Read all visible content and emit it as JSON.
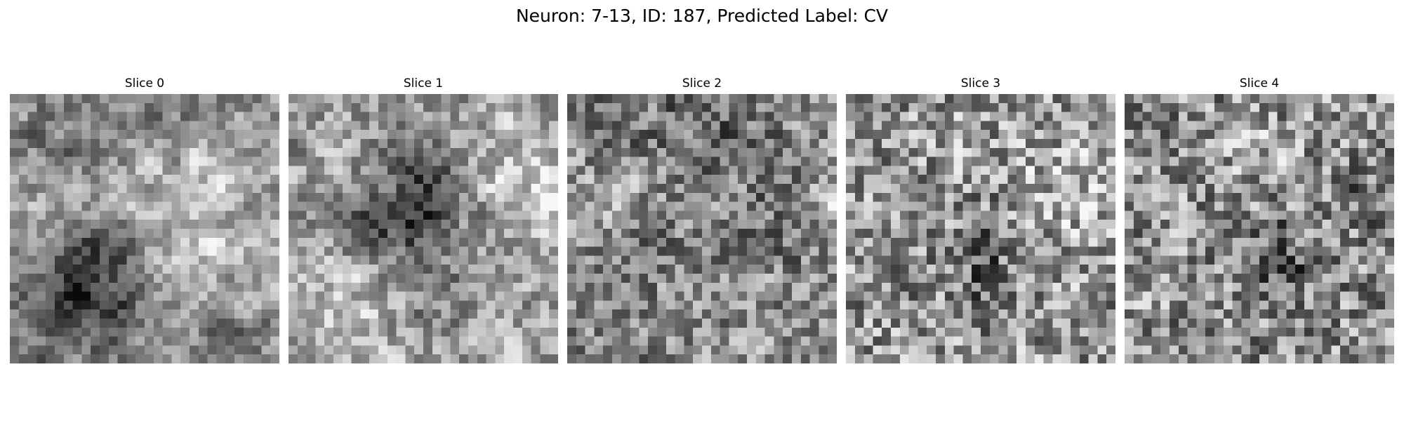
{
  "figure": {
    "title": "Neuron: 7-13, ID: 187, Predicted Label: CV"
  },
  "panels": [
    {
      "title": "Slice 0"
    },
    {
      "title": "Slice 1"
    },
    {
      "title": "Slice 2"
    },
    {
      "title": "Slice 3"
    },
    {
      "title": "Slice 4"
    }
  ],
  "colormap": "gray"
}
